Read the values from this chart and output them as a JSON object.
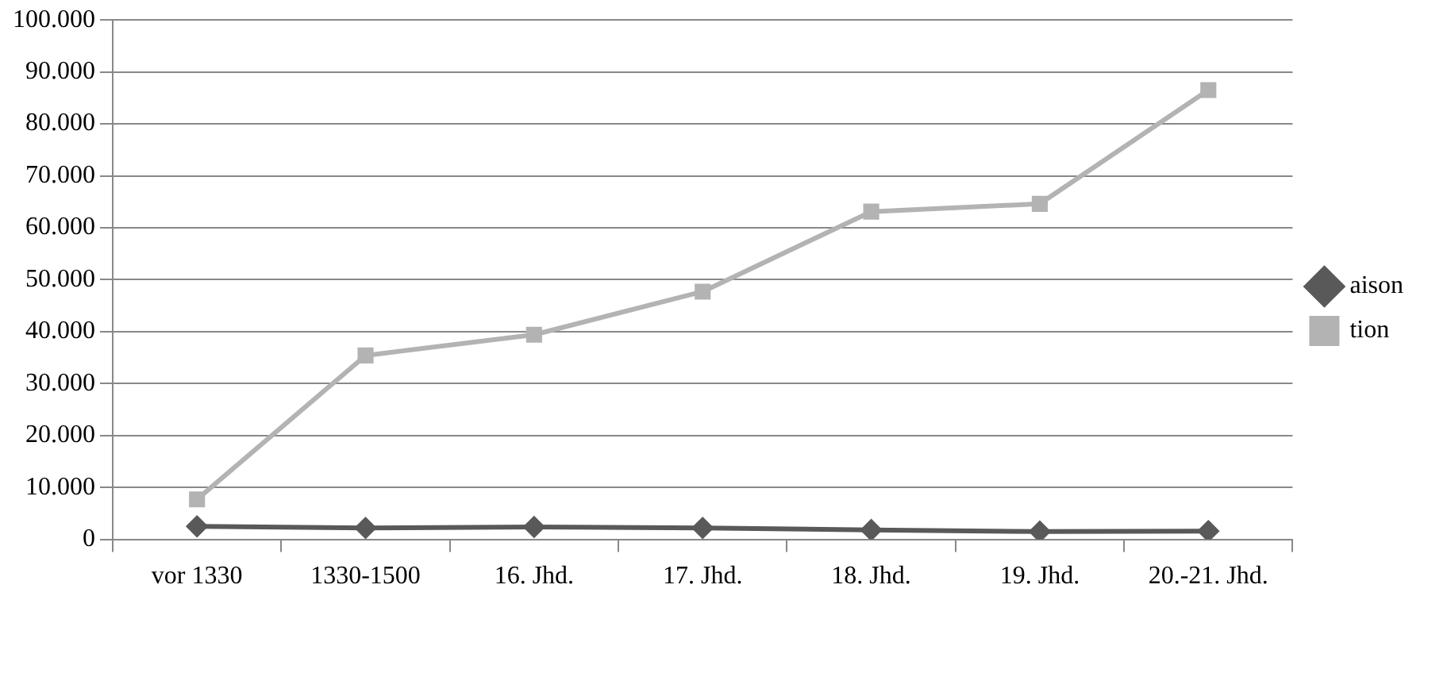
{
  "chart_data": {
    "type": "line",
    "categories": [
      "vor 1330",
      "1330-1500",
      "16. Jhd.",
      "17. Jhd.",
      "18. Jhd.",
      "19. Jhd.",
      "20.-21. Jhd."
    ],
    "series": [
      {
        "name": "aison",
        "color": "#595959",
        "marker": "diamond",
        "values": [
          2500,
          2200,
          2400,
          2200,
          1800,
          1500,
          1600
        ]
      },
      {
        "name": "tion",
        "color": "#b3b3b3",
        "marker": "square",
        "values": [
          7700,
          35400,
          39400,
          47700,
          63100,
          64600,
          86500
        ]
      }
    ],
    "ylim": [
      0,
      100000
    ],
    "yticks": [
      0,
      {
        "value": 10000,
        "label": "10.000"
      },
      {
        "value": 20000,
        "label": "20.000"
      },
      {
        "value": 30000,
        "label": "30.000"
      },
      {
        "value": 40000,
        "label": "40.000"
      },
      {
        "value": 50000,
        "label": "50.000"
      },
      {
        "value": 60000,
        "label": "60.000"
      },
      {
        "value": 70000,
        "label": "70.000"
      },
      {
        "value": 80000,
        "label": "80.000"
      },
      {
        "value": 90000,
        "label": "90.000"
      },
      {
        "value": 100000,
        "label": "100.000"
      }
    ],
    "grid": "y",
    "legend": "right",
    "line_style": "solid"
  }
}
